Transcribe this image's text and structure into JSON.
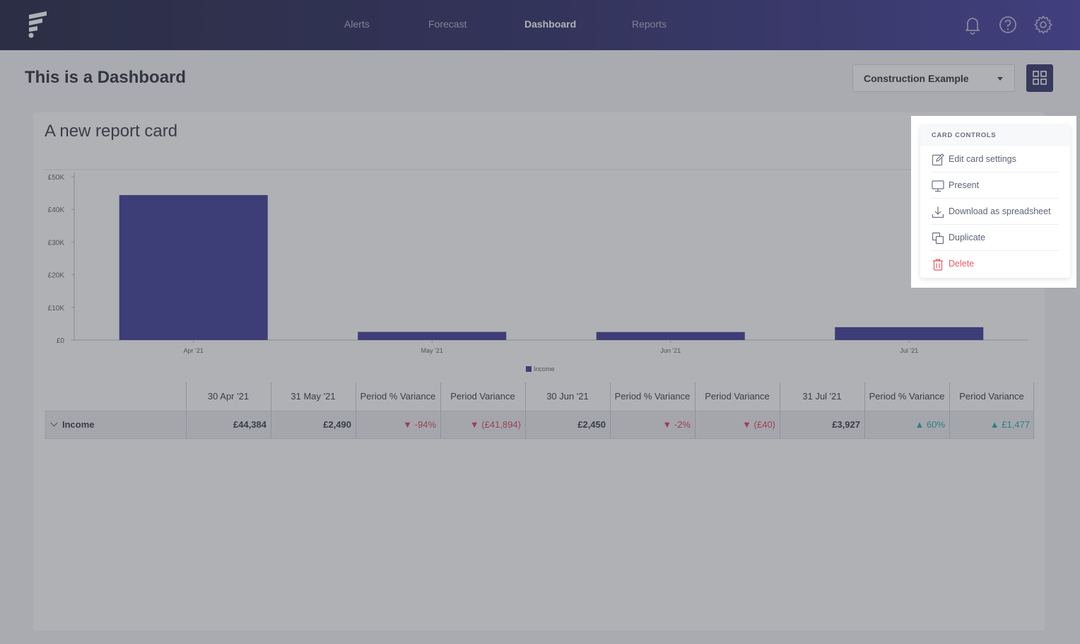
{
  "nav": {
    "items": [
      "Alerts",
      "Forecast",
      "Dashboard",
      "Reports"
    ],
    "active": "Dashboard",
    "icons": [
      "bell-icon",
      "help-icon",
      "gear-icon"
    ]
  },
  "page": {
    "title": "This is a Dashboard",
    "selector_value": "Construction Example"
  },
  "card": {
    "title": "A new report card"
  },
  "chart_data": {
    "type": "bar",
    "categories": [
      "Apr '21",
      "May '21",
      "Jun '21",
      "Jul '21"
    ],
    "series": [
      {
        "name": "Income",
        "values": [
          44384,
          2490,
          2450,
          3927
        ]
      }
    ],
    "y_ticks": [
      "£0",
      "£10K",
      "£20K",
      "£30K",
      "£40K",
      "£50K"
    ],
    "ylim": [
      0,
      50000
    ],
    "color": "#2f2c8f",
    "legend": "bottom"
  },
  "table": {
    "headers": [
      "30 Apr '21",
      "31 May '21",
      "Period % Variance",
      "Period Variance",
      "30 Jun '21",
      "Period % Variance",
      "Period Variance",
      "31 Jul '21",
      "Period % Variance",
      "Period Variance"
    ],
    "row_label": "Income",
    "cells": [
      {
        "text": "£44,384",
        "kind": "plain"
      },
      {
        "text": "£2,490",
        "kind": "plain"
      },
      {
        "text": "▼ -94%",
        "kind": "neg"
      },
      {
        "text": "▼ (£41,894)",
        "kind": "neg"
      },
      {
        "text": "£2,450",
        "kind": "plain"
      },
      {
        "text": "▼ -2%",
        "kind": "neg"
      },
      {
        "text": "▼ (£40)",
        "kind": "neg"
      },
      {
        "text": "£3,927",
        "kind": "plain"
      },
      {
        "text": "▲ 60%",
        "kind": "pos"
      },
      {
        "text": "▲ £1,477",
        "kind": "pos"
      }
    ]
  },
  "menu": {
    "header": "CARD CONTROLS",
    "items": [
      {
        "label": "Edit card settings",
        "icon": "edit-icon"
      },
      {
        "label": "Present",
        "icon": "monitor-icon"
      },
      {
        "label": "Download as spreadsheet",
        "icon": "download-icon"
      },
      {
        "label": "Duplicate",
        "icon": "duplicate-icon"
      },
      {
        "label": "Delete",
        "icon": "trash-icon"
      }
    ]
  },
  "colors": {
    "accent": "#23255e",
    "bar": "#2f2c8f",
    "negative": "#d8344f",
    "positive": "#1aa2a6",
    "danger": "#e35b66"
  }
}
